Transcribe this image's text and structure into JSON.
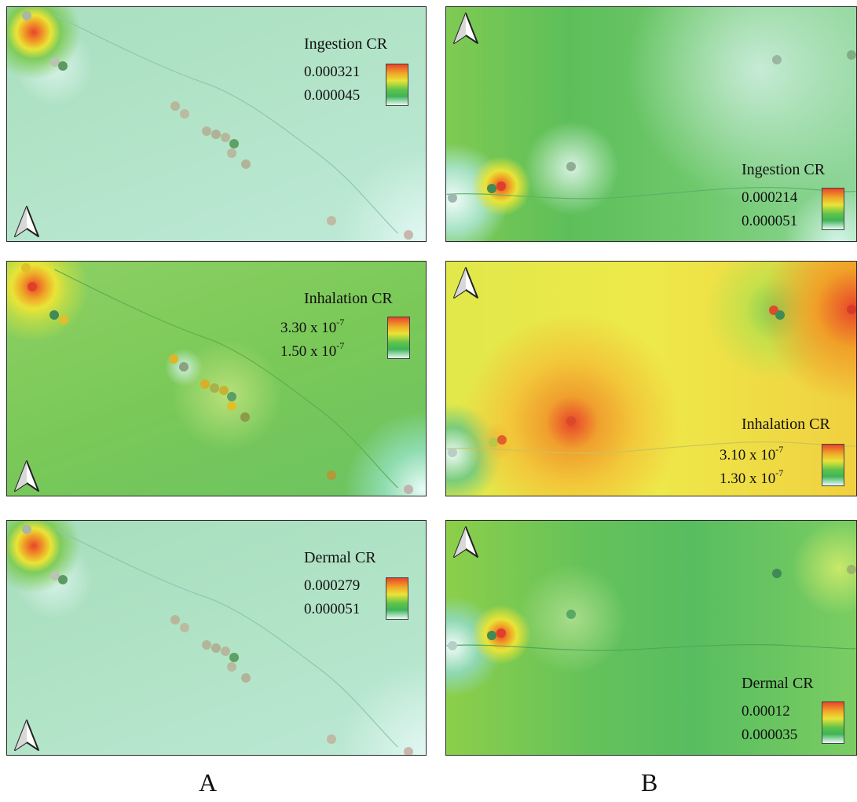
{
  "panels": {
    "a_ingestion": {
      "legend_title": "Ingestion CR",
      "max": "0.000321",
      "min": "0.000045"
    },
    "a_inhalation": {
      "legend_title": "Inhalation CR",
      "max_base": "3.30 x 10",
      "max_exp": "-7",
      "min_base": "1.50 x 10",
      "min_exp": "-7"
    },
    "a_dermal": {
      "legend_title": "Dermal CR",
      "max": "0.000279",
      "min": "0.000051"
    },
    "b_ingestion": {
      "legend_title": "Ingestion CR",
      "max": "0.000214",
      "min": "0.000051"
    },
    "b_inhalation": {
      "legend_title": "Inhalation CR",
      "max_base": "3.10 x 10",
      "max_exp": "-7",
      "min_base": "1.30 x 10",
      "min_exp": "-7"
    },
    "b_dermal": {
      "legend_title": "Dermal CR",
      "max": "0.00012",
      "min": "0.000035"
    }
  },
  "captions": {
    "left": "A",
    "right": "B"
  },
  "colors": {
    "high": "#e8442a",
    "mid": "#e9e437",
    "low": "#5fc34a",
    "lowest": "#e8fbf6"
  },
  "icons": {
    "north_arrow": "north-arrow-icon"
  }
}
